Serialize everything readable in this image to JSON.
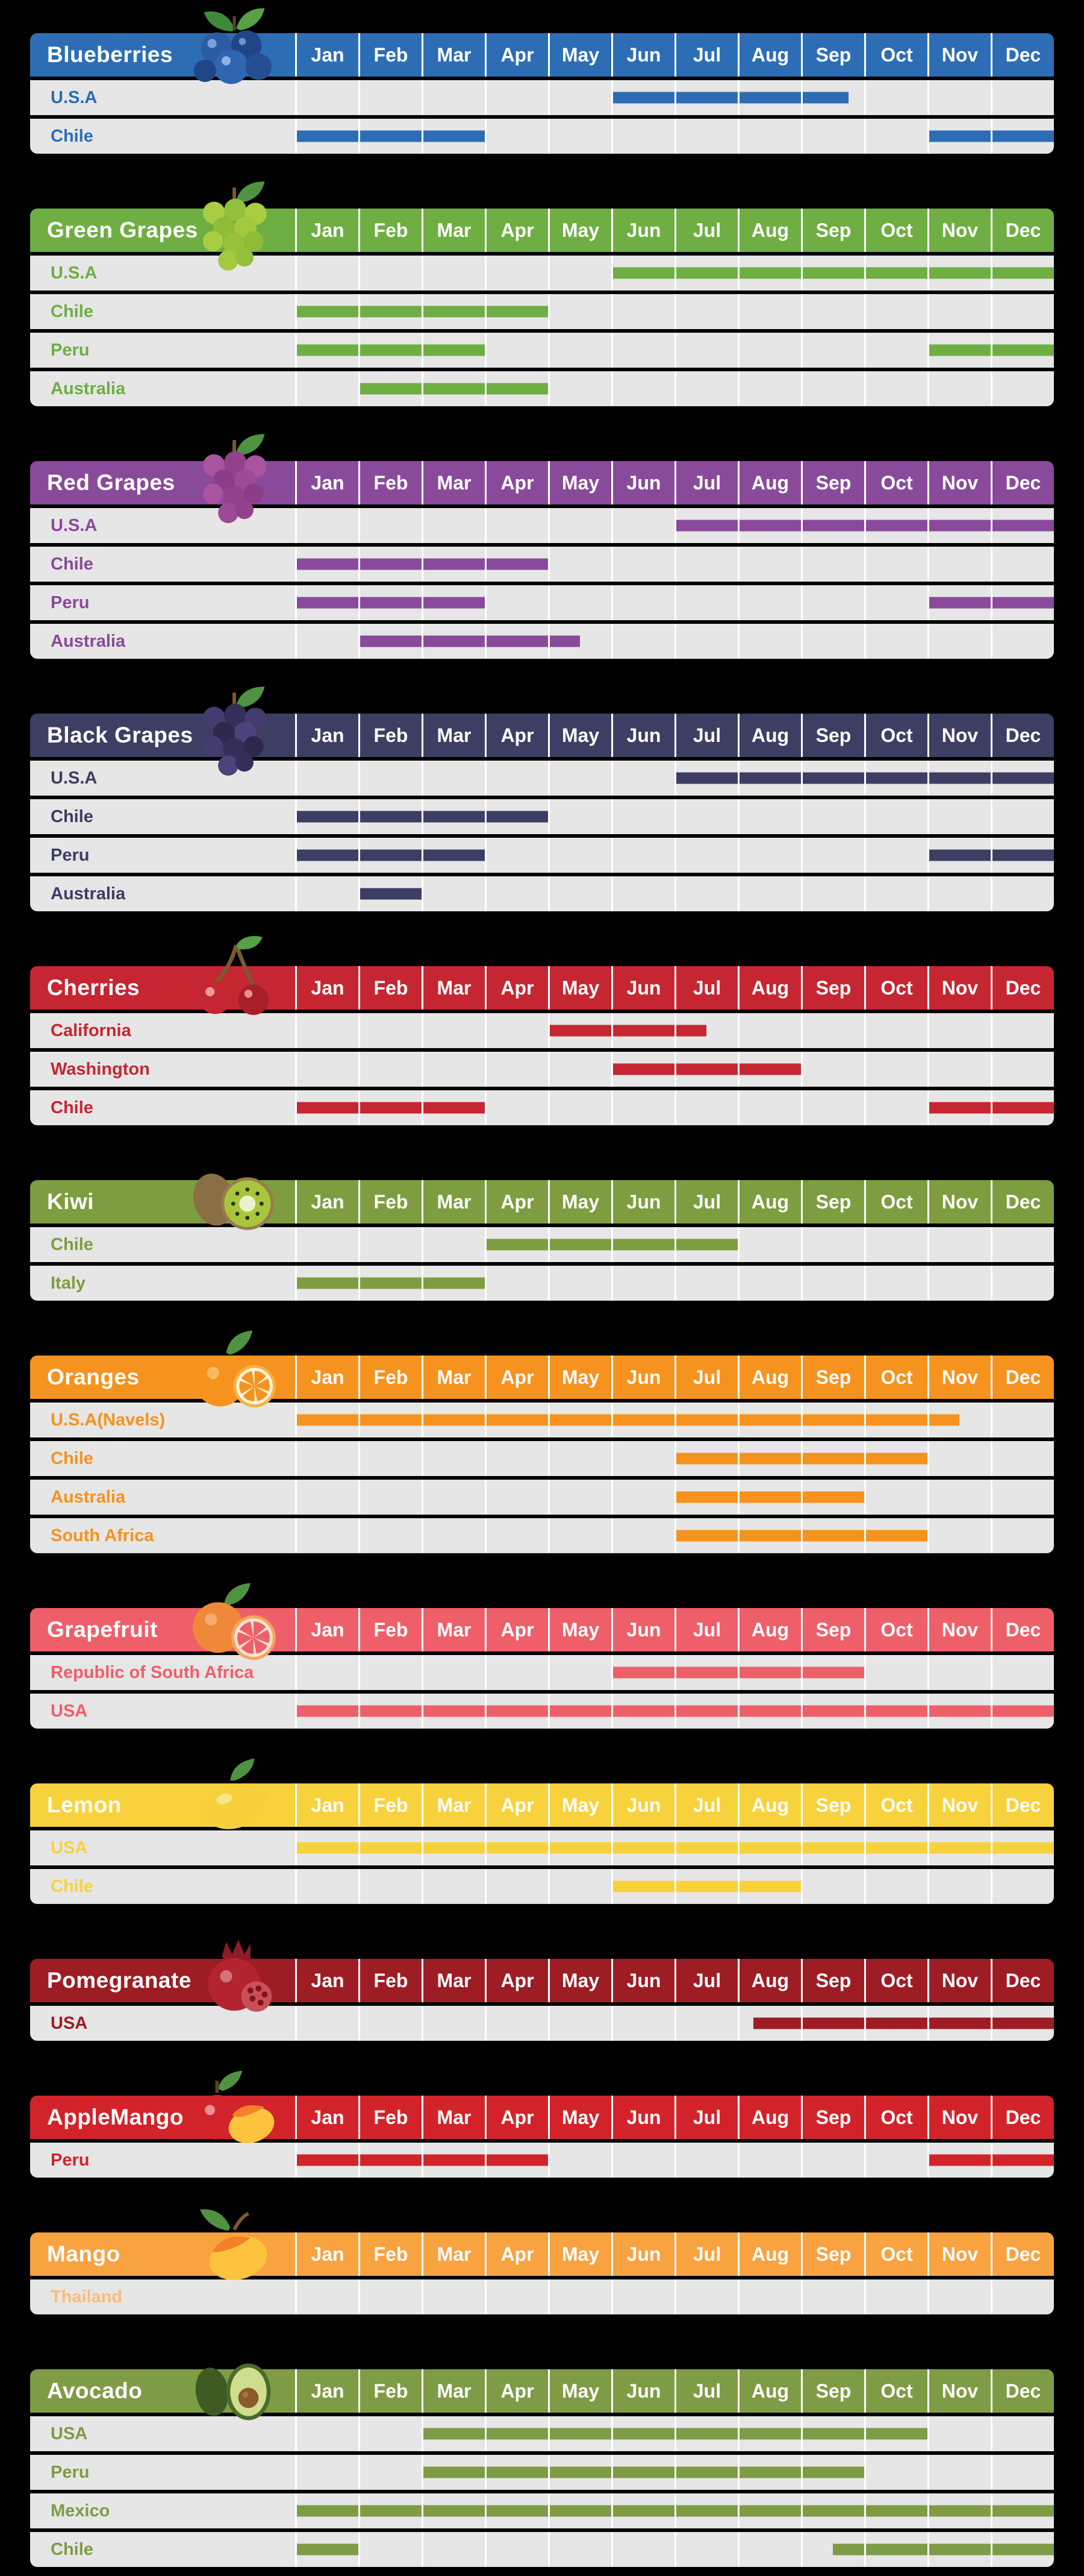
{
  "page": {
    "background": "#000000",
    "row_background": "#e6e6e6",
    "separator_color": "#ffffff",
    "header_text_color": "#ffffff"
  },
  "chart_data": {
    "type": "table",
    "title": "Fruit seasonal availability calendar by country of origin",
    "categories": [
      "Jan",
      "Feb",
      "Mar",
      "Apr",
      "May",
      "Jun",
      "Jul",
      "Aug",
      "Sep",
      "Oct",
      "Nov",
      "Dec"
    ],
    "units": "availability ranges in month units, 0 = start of Jan, 12 = end of Dec",
    "sections": [
      {
        "fruit": "Blueberries",
        "color": "#2d6db6",
        "icon": "blueberries-icon",
        "rows": [
          {
            "country": "U.S.A",
            "bars": [
              [
                5,
                8.75
              ]
            ]
          },
          {
            "country": "Chile",
            "bars": [
              [
                0,
                3
              ],
              [
                10,
                12
              ]
            ]
          }
        ]
      },
      {
        "fruit": "Green Grapes",
        "color": "#6fae43",
        "icon": "green-grapes-icon",
        "rows": [
          {
            "country": "U.S.A",
            "bars": [
              [
                5,
                12
              ]
            ]
          },
          {
            "country": "Chile",
            "bars": [
              [
                0,
                4
              ]
            ]
          },
          {
            "country": "Peru",
            "bars": [
              [
                0,
                3
              ],
              [
                10,
                12
              ]
            ]
          },
          {
            "country": "Australia",
            "bars": [
              [
                1,
                4
              ]
            ]
          }
        ]
      },
      {
        "fruit": "Red Grapes",
        "color": "#8a4a9b",
        "icon": "red-grapes-icon",
        "rows": [
          {
            "country": "U.S.A",
            "bars": [
              [
                6,
                12
              ]
            ]
          },
          {
            "country": "Chile",
            "bars": [
              [
                0,
                4
              ]
            ]
          },
          {
            "country": "Peru",
            "bars": [
              [
                0,
                3
              ],
              [
                10,
                12
              ]
            ]
          },
          {
            "country": "Australia",
            "bars": [
              [
                1,
                4.5
              ]
            ]
          }
        ]
      },
      {
        "fruit": "Black Grapes",
        "color": "#3d3e63",
        "icon": "black-grapes-icon",
        "rows": [
          {
            "country": "U.S.A",
            "bars": [
              [
                6,
                12
              ]
            ]
          },
          {
            "country": "Chile",
            "bars": [
              [
                0,
                4
              ]
            ]
          },
          {
            "country": "Peru",
            "bars": [
              [
                0,
                3
              ],
              [
                10,
                12
              ]
            ]
          },
          {
            "country": "Australia",
            "bars": [
              [
                1,
                2
              ]
            ]
          }
        ]
      },
      {
        "fruit": "Cherries",
        "color": "#c62631",
        "icon": "cherries-icon",
        "rows": [
          {
            "country": "California",
            "bars": [
              [
                4,
                6.5
              ]
            ]
          },
          {
            "country": "Washington",
            "bars": [
              [
                5,
                8
              ]
            ]
          },
          {
            "country": "Chile",
            "bars": [
              [
                0,
                3
              ],
              [
                10,
                12
              ]
            ]
          }
        ]
      },
      {
        "fruit": "Kiwi",
        "color": "#7d9d40",
        "icon": "kiwi-icon",
        "rows": [
          {
            "country": "Chile",
            "bars": [
              [
                3,
                7
              ]
            ]
          },
          {
            "country": "Italy",
            "bars": [
              [
                0,
                3
              ]
            ]
          }
        ]
      },
      {
        "fruit": "Oranges",
        "color": "#f6921e",
        "icon": "oranges-icon",
        "rows": [
          {
            "country": "U.S.A(Navels)",
            "bars": [
              [
                0,
                10.5
              ]
            ]
          },
          {
            "country": "Chile",
            "bars": [
              [
                6,
                10
              ]
            ]
          },
          {
            "country": "Australia",
            "bars": [
              [
                6,
                9
              ]
            ]
          },
          {
            "country": "South Africa",
            "bars": [
              [
                6,
                10
              ]
            ]
          }
        ]
      },
      {
        "fruit": "Grapefruit",
        "color": "#ee5f69",
        "icon": "grapefruit-icon",
        "rows": [
          {
            "country": "Republic of South Africa",
            "bars": [
              [
                5,
                9
              ]
            ]
          },
          {
            "country": "USA",
            "bars": [
              [
                0,
                12
              ]
            ]
          }
        ]
      },
      {
        "fruit": "Lemon",
        "color": "#f8d23c",
        "icon": "lemon-icon",
        "rows": [
          {
            "country": "USA",
            "bars": [
              [
                0,
                12
              ]
            ]
          },
          {
            "country": "Chile",
            "bars": [
              [
                5,
                8
              ]
            ]
          }
        ]
      },
      {
        "fruit": "Pomegranate",
        "color": "#9e1c24",
        "icon": "pomegranate-icon",
        "rows": [
          {
            "country": "USA",
            "bars": [
              [
                7.25,
                12
              ]
            ]
          }
        ]
      },
      {
        "fruit": "AppleMango",
        "color": "#d2232b",
        "icon": "applemango-icon",
        "rows": [
          {
            "country": "Peru",
            "bars": [
              [
                0,
                4
              ],
              [
                10,
                12
              ]
            ]
          }
        ]
      },
      {
        "fruit": "Mango",
        "color": "#f9a240",
        "icon": "mango-icon",
        "rows": [
          {
            "country": "Thailand",
            "label_color": "#f9bd7a",
            "bars": []
          }
        ]
      },
      {
        "fruit": "Avocado",
        "color": "#7e9c45",
        "icon": "avocado-icon",
        "rows": [
          {
            "country": "USA",
            "bars": [
              [
                2,
                10
              ]
            ]
          },
          {
            "country": "Peru",
            "bars": [
              [
                2,
                9
              ]
            ]
          },
          {
            "country": "Mexico",
            "bars": [
              [
                0,
                12
              ]
            ]
          },
          {
            "country": "Chile",
            "bars": [
              [
                0,
                1
              ],
              [
                8.5,
                12
              ]
            ]
          }
        ]
      }
    ]
  }
}
